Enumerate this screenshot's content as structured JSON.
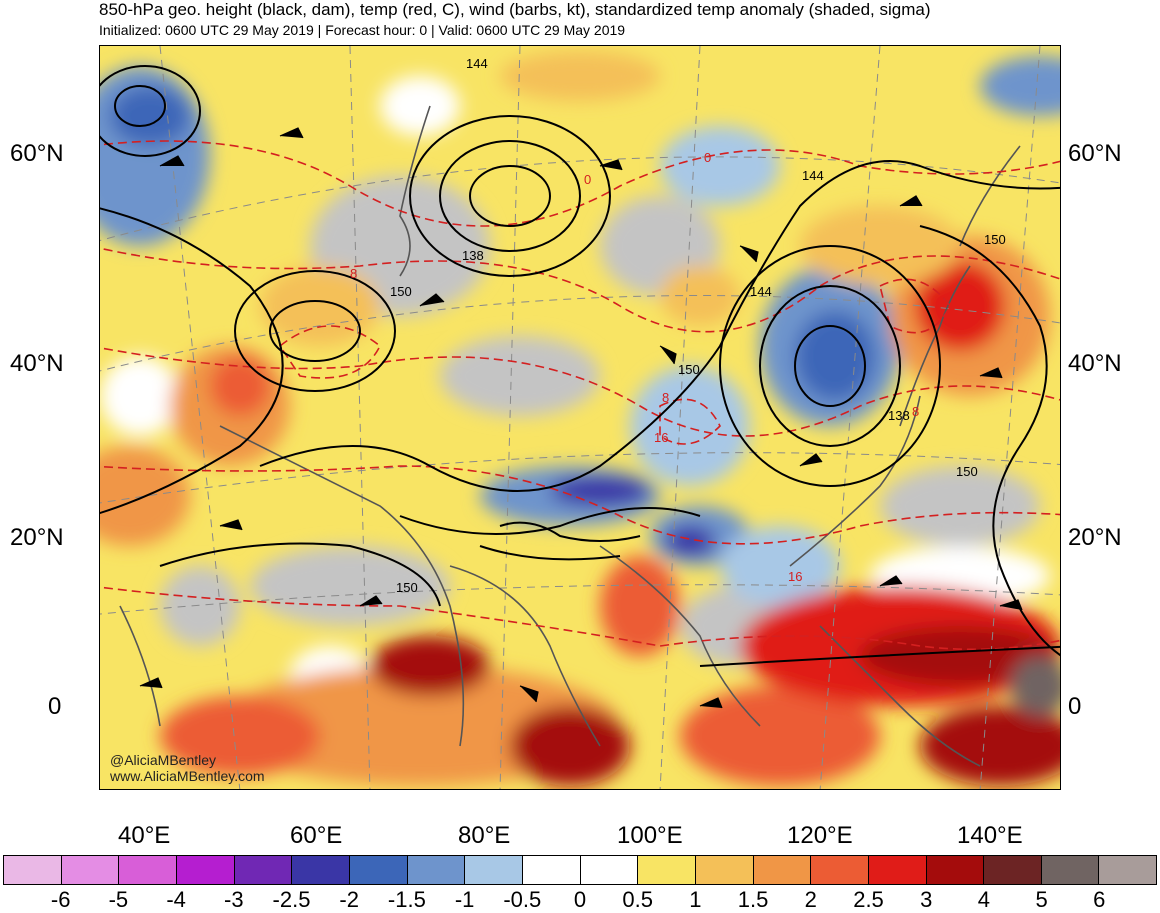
{
  "header": {
    "title": "850-hPa geo. height (black, dam), temp (red, C), wind (barbs, kt), standardized temp anomaly (shaded, sigma)",
    "subtitle": "Initialized: 0600 UTC 29 May 2019 | Forecast hour: 0 | Valid: 0600 UTC 29 May 2019"
  },
  "map": {
    "lat_labels_left": [
      "60°N",
      "40°N",
      "20°N",
      "0"
    ],
    "lat_labels_right": [
      "60°N",
      "40°N",
      "20°N",
      "0"
    ],
    "lon_labels": [
      "40°E",
      "60°E",
      "80°E",
      "100°E",
      "120°E",
      "140°E"
    ],
    "height_contour_labels": [
      "144",
      "138",
      "150",
      "144",
      "150",
      "150",
      "144",
      "150",
      "150",
      "138",
      "150"
    ],
    "temp_contour_labels": [
      "8",
      "0",
      "8",
      "16",
      "8",
      "16",
      "0"
    ],
    "credit_handle": "@AliciaMBentley",
    "credit_url": "www.AliciaMBentley.com"
  },
  "colorbar": {
    "colors": [
      "#eab8e6",
      "#e48de4",
      "#d85ed8",
      "#b51ed0",
      "#7028b4",
      "#3a36a6",
      "#3c66b8",
      "#6e94cc",
      "#a8c8e6",
      "#ffffff",
      "#ffffff",
      "#f8e464",
      "#f4c058",
      "#f09646",
      "#ec5c34",
      "#e01c18",
      "#a40c0c",
      "#6c2424",
      "#706462",
      "#a89c9a"
    ],
    "tick_labels": [
      "-6",
      "-5",
      "-4",
      "-3",
      "-2.5",
      "-2",
      "-1.5",
      "-1",
      "-0.5",
      "0",
      "0.5",
      "1",
      "1.5",
      "2",
      "2.5",
      "3",
      "4",
      "5",
      "6"
    ]
  }
}
